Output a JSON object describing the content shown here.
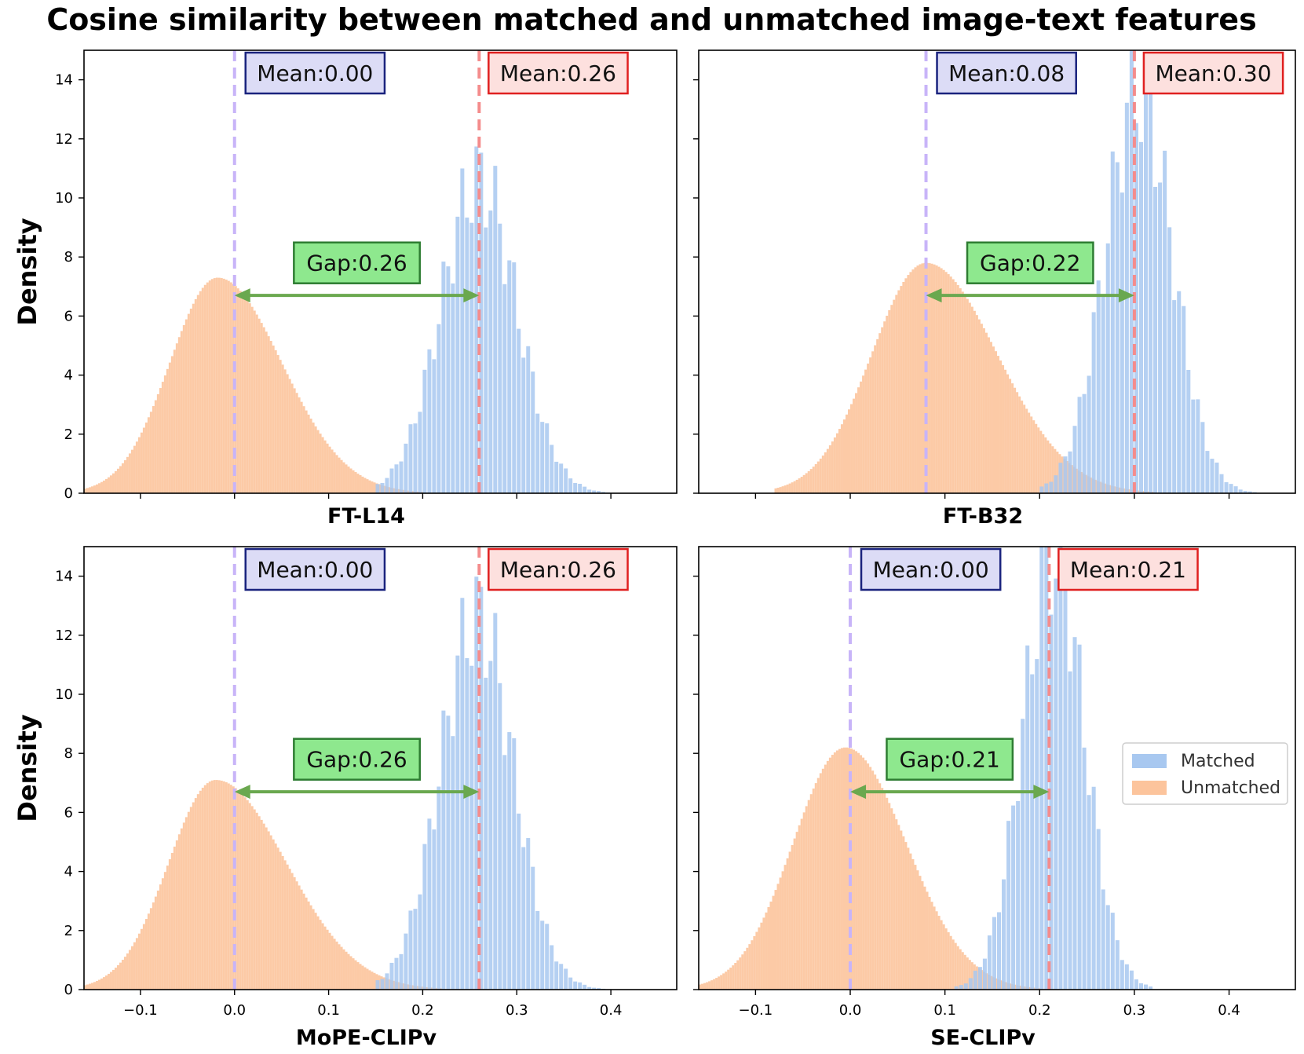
{
  "title": "Cosine similarity between matched and unmatched image-text features",
  "colors": {
    "matched": "#a8c8f0",
    "unmatched": "#fcc49c",
    "mean_unmatched_line": "#c8b4f8",
    "mean_matched_line": "#f48c8c",
    "gap_arrow": "#6aa84f",
    "blue_box_fill": "#dcdcf6",
    "blue_box_edge": "#1a237e",
    "red_box_fill": "#fde0de",
    "red_box_edge": "#e02020",
    "green_box_fill": "#8ee88e",
    "green_box_edge": "#2e7d32"
  },
  "chart_data": [
    {
      "type": "histogram",
      "xlabel": "FT-L14",
      "ylabel": "Density",
      "xlim": [
        -0.16,
        0.47
      ],
      "ylim": [
        0,
        15
      ],
      "xticks": [
        "-0.1",
        "0.0",
        "0.1",
        "0.2",
        "0.3",
        "0.4"
      ],
      "show_xtick_labels": false,
      "yticks": [
        "0",
        "2",
        "4",
        "6",
        "8",
        "10",
        "12",
        "14"
      ],
      "show_ytick_labels": true,
      "series": [
        {
          "name": "Unmatched",
          "distribution": "skewed-normal",
          "peak_x": -0.018,
          "peak_density": 7.3,
          "min_x": -0.16,
          "max_x": 0.2
        },
        {
          "name": "Matched",
          "distribution": "normal",
          "peak_x": 0.26,
          "peak_density": 10.6,
          "min_x": 0.15,
          "max_x": 0.41
        }
      ],
      "unmatched_mean": 0.0,
      "matched_mean": 0.26,
      "unmatched_mean_label": "Mean:0.00",
      "matched_mean_label": "Mean:0.26",
      "gap_label": "Gap:0.26",
      "gap_arrow_y": 6.7,
      "gap_box_y": 7.8
    },
    {
      "type": "histogram",
      "xlabel": "FT-B32",
      "ylabel": "",
      "xlim": [
        -0.16,
        0.47
      ],
      "ylim": [
        0,
        15
      ],
      "xticks": [
        "-0.1",
        "0.0",
        "0.1",
        "0.2",
        "0.3",
        "0.4"
      ],
      "show_xtick_labels": false,
      "yticks": [
        "0",
        "2",
        "4",
        "6",
        "8",
        "10",
        "12",
        "14"
      ],
      "show_ytick_labels": false,
      "series": [
        {
          "name": "Unmatched",
          "distribution": "skewed-normal",
          "peak_x": 0.08,
          "peak_density": 7.8,
          "min_x": -0.08,
          "max_x": 0.32
        },
        {
          "name": "Matched",
          "distribution": "normal",
          "peak_x": 0.305,
          "peak_density": 13.6,
          "min_x": 0.2,
          "max_x": 0.43
        }
      ],
      "unmatched_mean": 0.08,
      "matched_mean": 0.3,
      "unmatched_mean_label": "Mean:0.08",
      "matched_mean_label": "Mean:0.30",
      "gap_label": "Gap:0.22",
      "gap_arrow_y": 6.7,
      "gap_box_y": 7.8
    },
    {
      "type": "histogram",
      "xlabel": "MoPE-CLIPv",
      "ylabel": "Density",
      "xlim": [
        -0.16,
        0.47
      ],
      "ylim": [
        0,
        15
      ],
      "xticks": [
        "-0.1",
        "0.0",
        "0.1",
        "0.2",
        "0.3",
        "0.4"
      ],
      "show_xtick_labels": true,
      "yticks": [
        "0",
        "2",
        "4",
        "6",
        "8",
        "10",
        "12",
        "14"
      ],
      "show_ytick_labels": true,
      "series": [
        {
          "name": "Unmatched",
          "distribution": "skewed-normal",
          "peak_x": -0.02,
          "peak_density": 7.1,
          "min_x": -0.16,
          "max_x": 0.22
        },
        {
          "name": "Matched",
          "distribution": "normal",
          "peak_x": 0.258,
          "peak_density": 12.6,
          "min_x": 0.15,
          "max_x": 0.4
        }
      ],
      "unmatched_mean": 0.0,
      "matched_mean": 0.26,
      "unmatched_mean_label": "Mean:0.00",
      "matched_mean_label": "Mean:0.26",
      "gap_label": "Gap:0.26",
      "gap_arrow_y": 6.7,
      "gap_box_y": 7.8
    },
    {
      "type": "histogram",
      "xlabel": "SE-CLIPv",
      "ylabel": "",
      "xlim": [
        -0.16,
        0.47
      ],
      "ylim": [
        0,
        15
      ],
      "xticks": [
        "-0.1",
        "0.0",
        "0.1",
        "0.2",
        "0.3",
        "0.4"
      ],
      "show_xtick_labels": true,
      "yticks": [
        "0",
        "2",
        "4",
        "6",
        "8",
        "10",
        "12",
        "14"
      ],
      "show_ytick_labels": false,
      "series": [
        {
          "name": "Unmatched",
          "distribution": "skewed-normal",
          "peak_x": -0.005,
          "peak_density": 8.2,
          "min_x": -0.16,
          "max_x": 0.2
        },
        {
          "name": "Matched",
          "distribution": "normal",
          "peak_x": 0.215,
          "peak_density": 14.7,
          "min_x": 0.11,
          "max_x": 0.32
        }
      ],
      "unmatched_mean": 0.0,
      "matched_mean": 0.21,
      "unmatched_mean_label": "Mean:0.00",
      "matched_mean_label": "Mean:0.21",
      "gap_label": "Gap:0.21",
      "gap_arrow_y": 6.7,
      "gap_box_y": 7.8
    }
  ],
  "legend": {
    "placement": "center-right",
    "items": [
      "Matched",
      "Unmatched"
    ]
  }
}
